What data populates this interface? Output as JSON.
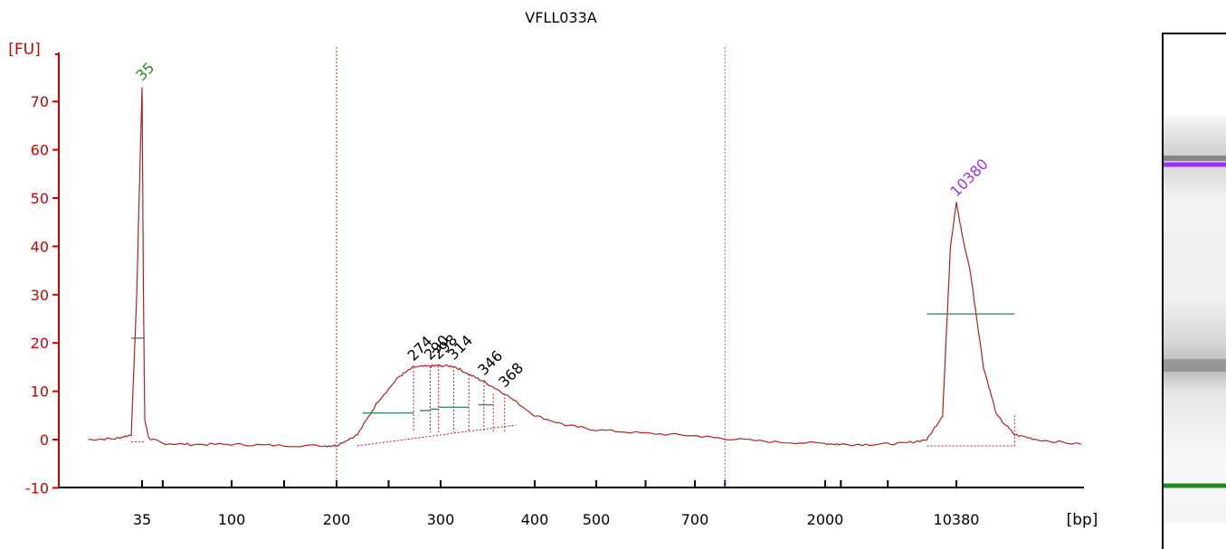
{
  "colors": {
    "axis": "#cc0000",
    "trace": "#b22222",
    "marker_lower": "#228b22",
    "marker_upper": "#9b30ff",
    "peak_label": "#000000",
    "region_line": "#2e7d5b",
    "region_lower_divider": "#8b4513",
    "region_upper_divider": "#6a6aff",
    "gel_band": "#7a7a7a"
  },
  "chart_data": {
    "type": "line",
    "title": "VFLL033A",
    "xlabel": "[bp]",
    "ylabel": "[FU]",
    "ylim": [
      -10,
      80
    ],
    "yticks": [
      "-10",
      "0",
      "10",
      "20",
      "30",
      "40",
      "50",
      "60",
      "70"
    ],
    "xtick_labels": [
      "35",
      "100",
      "200",
      "300",
      "400",
      "500",
      "700",
      "2000",
      "10380"
    ],
    "peak_labels": [
      {
        "label": "35",
        "bp": 35,
        "fu": 73,
        "color": "marker_lower"
      },
      {
        "label": "274",
        "bp": 274,
        "fu": 15,
        "color": "peak_label"
      },
      {
        "label": "290",
        "bp": 290,
        "fu": 15.2,
        "color": "peak_label"
      },
      {
        "label": "298",
        "bp": 298,
        "fu": 15.3,
        "color": "peak_label"
      },
      {
        "label": "314",
        "bp": 314,
        "fu": 15.2,
        "color": "peak_label"
      },
      {
        "label": "346",
        "bp": 346,
        "fu": 12,
        "color": "peak_label"
      },
      {
        "label": "368",
        "bp": 368,
        "fu": 9.5,
        "color": "peak_label"
      },
      {
        "label": "10380",
        "bp": 10380,
        "fu": 49,
        "color": "marker_upper"
      }
    ],
    "trace": {
      "name": "",
      "bp": [
        25,
        30,
        33,
        34,
        35,
        36,
        37,
        40,
        50,
        70,
        100,
        140,
        190,
        200,
        220,
        240,
        260,
        274,
        290,
        298,
        314,
        330,
        346,
        368,
        400,
        450,
        500,
        600,
        700,
        1000,
        1500,
        2000,
        3000,
        5000,
        7000,
        8500,
        9500,
        10000,
        10380,
        10700,
        11000,
        11600,
        12200,
        13000,
        14000,
        16000
      ],
      "fu": [
        0,
        0.2,
        1,
        30,
        73,
        30,
        4,
        0.3,
        -0.8,
        -1,
        -1,
        -1.2,
        -1.3,
        -1.2,
        1,
        8,
        13,
        15,
        15.2,
        15.3,
        15.2,
        13.5,
        12,
        9.5,
        5,
        3,
        2,
        1.3,
        0.8,
        0.2,
        -0.5,
        -0.8,
        -1,
        -1,
        -0.8,
        0,
        5,
        40,
        49,
        41,
        35,
        15,
        5,
        1,
        0,
        -1
      ]
    },
    "regions": [
      {
        "name": "",
        "bp_start": 225,
        "bp_end": 274,
        "fu": 5.5
      },
      {
        "name": "",
        "bp_start": 280,
        "bp_end": 290,
        "fu": 6
      },
      {
        "name": "",
        "bp_start": 290,
        "bp_end": 298,
        "fu": 6.3
      },
      {
        "name": "",
        "bp_start": 298,
        "bp_end": 330,
        "fu": 6.7
      },
      {
        "name": "",
        "bp_start": 340,
        "bp_end": 356,
        "fu": 7.2
      },
      {
        "name": "",
        "bp_start": 8500,
        "bp_end": 13000,
        "fu": 26
      },
      {
        "name": "",
        "bp_start": 33,
        "bp_end": 37,
        "fu": 21
      }
    ],
    "grid": false,
    "legend": "none",
    "gel": {
      "bands": [
        {
          "color": "marker_upper",
          "intensity": 1
        },
        {
          "color": "gel_band",
          "intensity": 0.55
        },
        {
          "color": "marker_lower",
          "intensity": 1
        }
      ]
    }
  }
}
